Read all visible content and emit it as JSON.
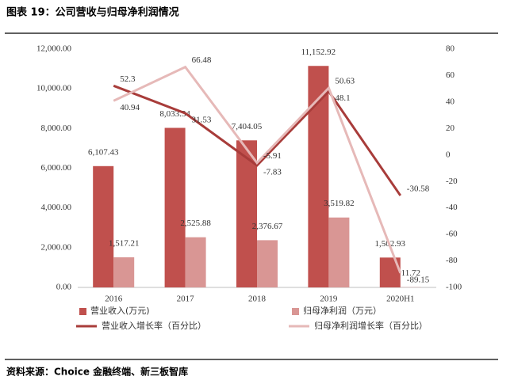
{
  "title": "图表 19：公司营收与归母净利润情况",
  "source": "资料来源：Choice 金融终端、新三板智库",
  "chart_data": {
    "type": "bar",
    "categories": [
      "2016",
      "2017",
      "2018",
      "2019",
      "2020H1"
    ],
    "series": [
      {
        "name": "营业收入(万元)",
        "type": "bar",
        "color": "#c0504d",
        "values": [
          6107.43,
          8033.34,
          7404.05,
          11152.92,
          1502.93
        ],
        "value_labels": [
          "6,107.43",
          "8,033.34",
          "7,404.05",
          "11,152.92",
          "1,502.93"
        ]
      },
      {
        "name": "归母净利润（万元）",
        "type": "bar",
        "color": "#d99694",
        "values": [
          1517.21,
          2525.88,
          2376.67,
          3519.82,
          11.72
        ],
        "value_labels": [
          "1,517.21",
          "2,525.88",
          "2,376.67",
          "3,519.82",
          "11.72"
        ]
      },
      {
        "name": "营业收入增长率（百分比）",
        "type": "line",
        "axis": "y2",
        "color": "#a83c3a",
        "values": [
          52.3,
          31.53,
          -7.83,
          48.1,
          -30.58
        ]
      },
      {
        "name": "归母净利润增长率（百分比）",
        "type": "line",
        "axis": "y2",
        "color": "#e6b9b8",
        "values": [
          40.94,
          66.48,
          -5.91,
          50.63,
          -89.15
        ]
      }
    ],
    "ylim": [
      0,
      12000
    ],
    "yticks": [
      {
        "value": 0,
        "label": "0.00"
      },
      {
        "value": 2000,
        "label": "2,000.00"
      },
      {
        "value": 4000,
        "label": "4,000.00"
      },
      {
        "value": 6000,
        "label": "6,000.00"
      },
      {
        "value": 8000,
        "label": "8,000.00"
      },
      {
        "value": 10000,
        "label": "10,000.00"
      },
      {
        "value": 12000,
        "label": "12,000.00"
      }
    ],
    "y2lim": [
      -100,
      80
    ],
    "y2ticks": [
      -100,
      -80,
      -60,
      -40,
      -20,
      0,
      20,
      40,
      60,
      80
    ],
    "grid": false
  }
}
